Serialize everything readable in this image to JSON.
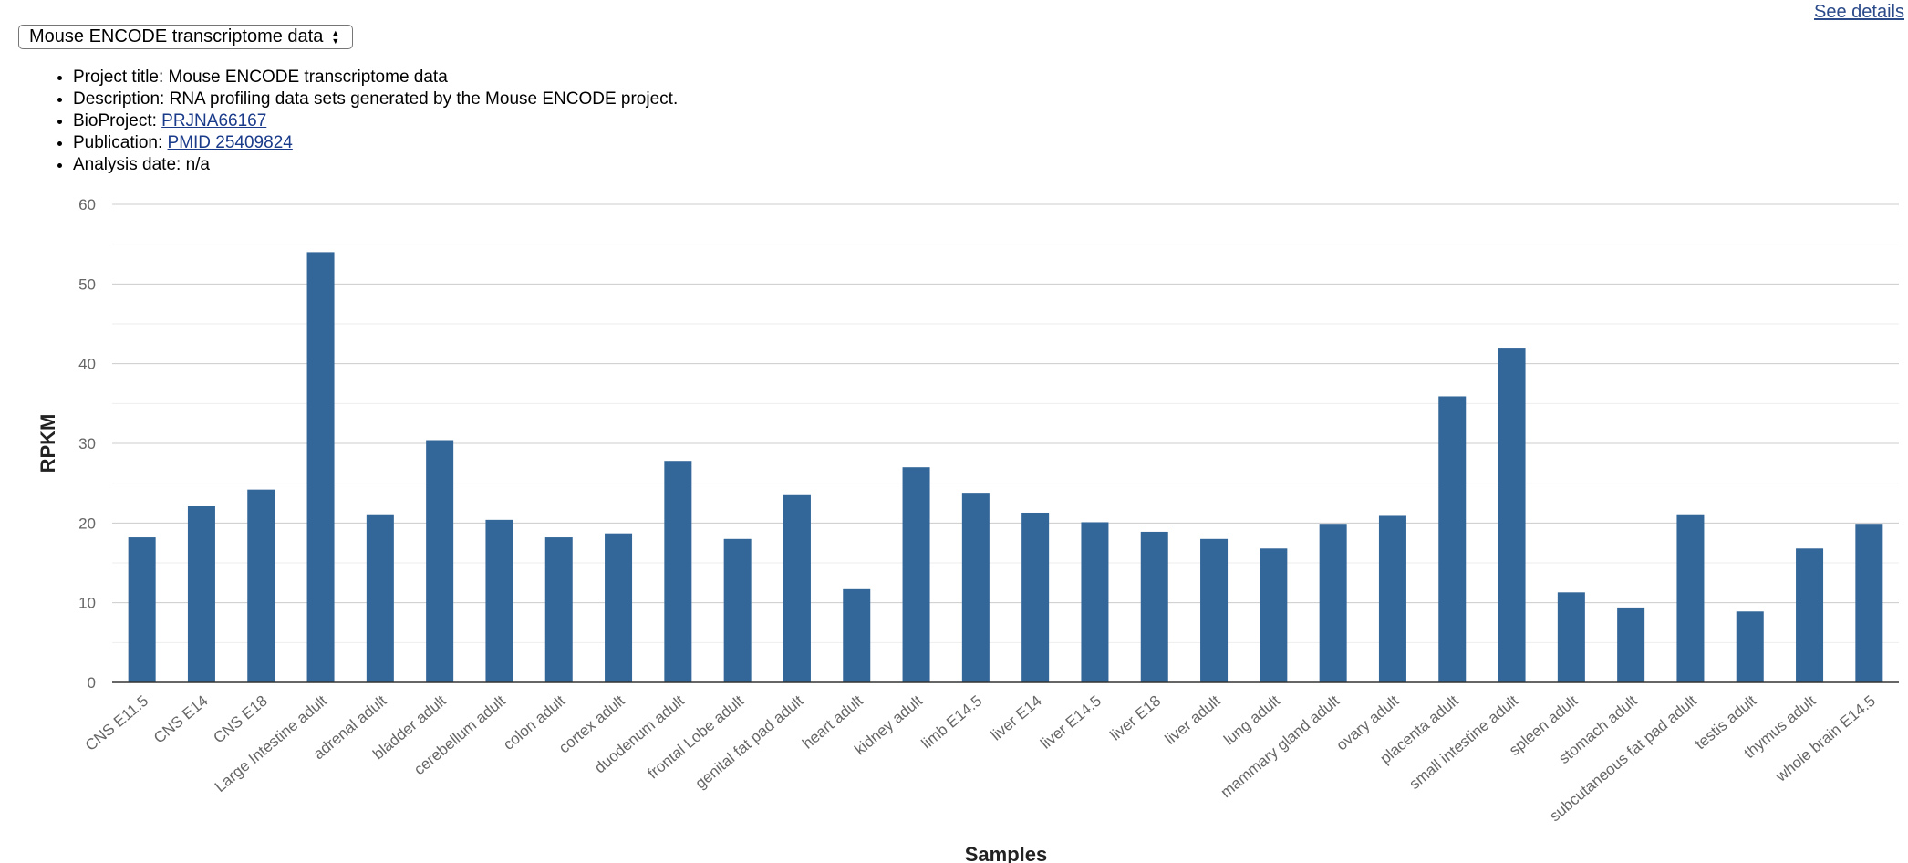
{
  "selector": {
    "value": "Mouse ENCODE transcriptome data"
  },
  "see_details": "See details",
  "info": {
    "title_label": "Project title: ",
    "title_value": "Mouse ENCODE transcriptome data",
    "desc_label": "Description: ",
    "desc_value": "RNA profiling data sets generated by the Mouse ENCODE project.",
    "bioproject_label": "BioProject: ",
    "bioproject_value": "PRJNA66167",
    "publication_label": "Publication: ",
    "publication_value": "PMID 25409824",
    "date_label": "Analysis date: ",
    "date_value": "n/a"
  },
  "colors": {
    "bar": "#336699",
    "grid": "#cccccc",
    "minor_grid": "#eeeeee",
    "axis": "#333333"
  },
  "chart_data": {
    "type": "bar",
    "xlabel": "Samples",
    "ylabel": "RPKM",
    "ylim": [
      0,
      60
    ],
    "yticks": [
      0,
      10,
      20,
      30,
      40,
      50,
      60
    ],
    "grid": true,
    "categories": [
      "CNS E11.5",
      "CNS E14",
      "CNS E18",
      "Large Intestine adult",
      "adrenal adult",
      "bladder adult",
      "cerebellum adult",
      "colon adult",
      "cortex adult",
      "duodenum adult",
      "frontal Lobe adult",
      "genital fat pad adult",
      "heart adult",
      "kidney adult",
      "limb E14.5",
      "liver E14",
      "liver E14.5",
      "liver E18",
      "liver adult",
      "lung adult",
      "mammary gland adult",
      "ovary adult",
      "placenta adult",
      "small intestine adult",
      "spleen adult",
      "stomach adult",
      "subcutaneous fat pad adult",
      "testis adult",
      "thymus adult",
      "whole brain E14.5"
    ],
    "values": [
      18.2,
      22.1,
      24.2,
      54.0,
      21.1,
      30.4,
      20.4,
      18.2,
      18.7,
      27.8,
      18.0,
      23.5,
      11.7,
      27.0,
      23.8,
      21.3,
      20.1,
      18.9,
      18.0,
      16.8,
      19.9,
      20.9,
      35.9,
      41.9,
      11.3,
      9.4,
      21.1,
      8.9,
      16.8,
      19.9
    ]
  }
}
